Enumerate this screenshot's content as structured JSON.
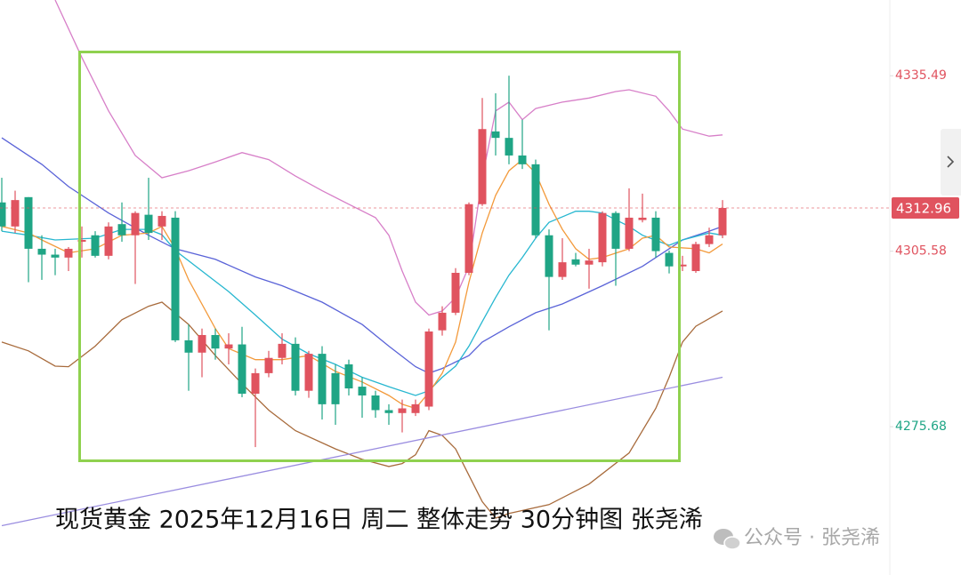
{
  "chart_data": {
    "type": "candlestick",
    "title": "现货黄金 2025年12月16日 周二 整体走势 30分钟图 张尧浠",
    "watermark": "公众号 · 张尧浠",
    "ylim": [
      4250.4,
      4348.4
    ],
    "yticks": [
      4335.49,
      4305.58,
      4275.68
    ],
    "ytick_colors": [
      "#e0535f",
      "#e0535f",
      "#1fa585"
    ],
    "up_color": "#e0535f",
    "down_color": "#1fa585",
    "last_price_color": "#e0535f",
    "open": [
      4313.9,
      4309.8,
      4314.8,
      4306.0,
      4305.0,
      4304.5,
      4307.2,
      4308.3,
      4304.8,
      4310.2,
      4308.3,
      4311.8,
      4309.8,
      4311.3,
      4290.4,
      4288.3,
      4291.3,
      4289.0,
      4289.7,
      4281.3,
      4284.8,
      4287.4,
      4289.8,
      4281.8,
      4288.1,
      4284.8,
      4286.3,
      4282.5,
      4281.0,
      4278.5,
      4278.0,
      4278.0,
      4279.1,
      4292.1,
      4295.1,
      4301.9,
      4313.6,
      4326.0,
      4324.9,
      4321.9,
      4320.4,
      4308.3,
      4301.2,
      4304.2,
      4303.3,
      4303.7,
      4312.1,
      4306.0,
      4310.9,
      4311.3,
      4305.3,
      4303.0,
      4302.2,
      4306.8,
      4308.3
    ],
    "high": [
      4318.1,
      4315.9,
      4314.8,
      4308.3,
      4306.0,
      4306.3,
      4309.8,
      4309.0,
      4310.5,
      4313.9,
      4312.4,
      4318.1,
      4312.4,
      4312.4,
      4293.1,
      4292.4,
      4292.4,
      4291.6,
      4292.7,
      4285.6,
      4288.6,
      4291.6,
      4290.9,
      4288.6,
      4289.4,
      4286.3,
      4287.1,
      4284.1,
      4281.8,
      4279.5,
      4280.3,
      4280.3,
      4292.4,
      4296.2,
      4302.7,
      4313.9,
      4331.7,
      4332.5,
      4335.5,
      4328.0,
      4321.2,
      4309.3,
      4307.8,
      4305.3,
      4306.0,
      4312.4,
      4312.4,
      4316.3,
      4315.4,
      4312.4,
      4305.7,
      4304.8,
      4307.2,
      4309.6,
      4314.3
    ],
    "low": [
      4309.0,
      4308.7,
      4300.3,
      4300.7,
      4301.5,
      4302.2,
      4304.5,
      4304.5,
      4304.2,
      4307.2,
      4300.0,
      4307.5,
      4307.5,
      4290.1,
      4281.8,
      4284.1,
      4287.1,
      4286.3,
      4280.7,
      4272.2,
      4284.1,
      4286.3,
      4281.0,
      4280.6,
      4276.9,
      4276.0,
      4281.0,
      4277.2,
      4277.2,
      4276.0,
      4274.7,
      4277.5,
      4278.5,
      4291.2,
      4294.7,
      4301.5,
      4313.3,
      4321.9,
      4320.4,
      4319.6,
      4307.8,
      4292.1,
      4300.7,
      4303.0,
      4299.2,
      4303.0,
      4299.7,
      4305.6,
      4310.5,
      4304.5,
      4301.8,
      4302.2,
      4301.9,
      4306.3,
      4307.8
    ],
    "close": [
      4309.8,
      4314.3,
      4306.0,
      4305.0,
      4304.5,
      4306.0,
      4307.5,
      4304.8,
      4309.8,
      4308.3,
      4312.1,
      4308.7,
      4311.6,
      4290.4,
      4288.3,
      4291.3,
      4289.0,
      4289.7,
      4281.3,
      4284.8,
      4287.4,
      4289.8,
      4281.8,
      4288.1,
      4279.5,
      4279.5,
      4282.2,
      4281.0,
      4278.5,
      4278.0,
      4278.8,
      4279.5,
      4291.9,
      4295.1,
      4301.9,
      4313.6,
      4326.4,
      4324.9,
      4321.9,
      4320.4,
      4308.3,
      4301.2,
      4303.7,
      4303.3,
      4304.0,
      4312.1,
      4306.0,
      4311.3,
      4311.3,
      4305.6,
      4303.0,
      4303.3,
      4306.8,
      4308.3,
      4312.96
    ],
    "lines": [
      {
        "color": "#d77fc8",
        "x": [
          4,
          6,
          8,
          10,
          12,
          14,
          16,
          18,
          20,
          22,
          24,
          26,
          28,
          29,
          30,
          31,
          32,
          33,
          34,
          35,
          36,
          37,
          38,
          39,
          40,
          42,
          44,
          46,
          47,
          49,
          50,
          51,
          53,
          54
        ],
        "values": [
          4348.4,
          4338.6,
          4329.5,
          4321.9,
          4318.1,
          4319.3,
          4320.8,
          4322.4,
          4321.2,
          4318.4,
          4315.9,
          4313.6,
          4311.3,
          4308.3,
          4302.2,
          4296.9,
          4294.7,
          4295.4,
          4297.7,
          4303.0,
          4318.1,
          4329.5,
          4331.0,
          4328.0,
          4329.9,
          4331.0,
          4331.7,
          4332.8,
          4333.1,
          4332.0,
          4329.5,
          4326.4,
          4325.2,
          4325.4
        ]
      },
      {
        "color": "#a86b3c",
        "x": [
          0,
          2,
          4,
          5,
          7,
          9,
          11,
          12,
          14,
          16,
          18,
          20,
          22,
          25,
          27,
          29,
          30,
          31,
          32,
          33,
          34,
          35,
          36,
          37,
          38,
          41,
          44,
          47,
          49,
          50,
          51,
          52,
          54
        ],
        "values": [
          4290.1,
          4288.6,
          4286.0,
          4285.9,
          4289.4,
          4293.9,
          4296.2,
          4296.9,
          4293.1,
          4287.8,
          4283.0,
          4278.5,
          4275.0,
          4271.9,
          4270.1,
          4268.9,
          4269.4,
          4270.9,
          4275.0,
          4274.2,
          4271.9,
          4267.4,
          4262.9,
          4260.1,
          4260.9,
          4262.4,
          4265.9,
          4271.2,
          4278.8,
          4284.1,
          4290.1,
          4292.8,
          4295.4
        ]
      },
      {
        "color": "#5a63d8",
        "x": [
          0,
          3,
          5,
          8,
          11,
          13,
          16,
          19,
          21,
          24,
          27,
          29,
          31,
          32,
          33,
          35,
          36,
          38,
          40,
          42,
          45,
          48,
          50,
          51,
          53,
          54
        ],
        "values": [
          4324.9,
          4320.4,
          4316.6,
          4312.1,
          4308.3,
          4306.0,
          4304.2,
          4301.2,
          4299.7,
          4296.9,
          4293.1,
          4289.4,
          4285.9,
          4284.8,
          4285.6,
          4287.8,
          4290.1,
          4292.7,
          4295.1,
          4296.6,
          4299.7,
          4303.0,
          4306.0,
          4307.5,
          4309.0,
          4309.8
        ]
      },
      {
        "color": "#27b7d0",
        "x": [
          0,
          2,
          4,
          7,
          9,
          11,
          12,
          13,
          15,
          17,
          19,
          21,
          23,
          25,
          27,
          29,
          31,
          32,
          33,
          34,
          35,
          36,
          37,
          38,
          39,
          40,
          41,
          43,
          44,
          45,
          47,
          48,
          50,
          51,
          53,
          54
        ],
        "values": [
          4309.0,
          4308.3,
          4307.5,
          4307.8,
          4309.3,
          4309.3,
          4308.4,
          4305.7,
          4302.2,
          4298.7,
          4294.7,
          4290.6,
          4288.1,
          4286.3,
          4284.1,
          4282.5,
          4281.0,
          4281.8,
          4284.1,
          4286.0,
          4289.4,
          4293.6,
          4297.7,
          4301.5,
          4304.5,
          4307.8,
          4310.5,
          4312.4,
          4312.4,
          4312.1,
          4309.8,
          4308.3,
          4306.6,
          4307.5,
          4308.7,
          4308.3
        ]
      },
      {
        "color": "#f39a3b",
        "x": [
          0,
          2,
          3,
          5,
          7,
          9,
          11,
          12,
          13,
          14,
          16,
          17,
          19,
          21,
          23,
          25,
          27,
          29,
          30,
          31,
          32,
          33,
          34,
          35,
          36,
          37,
          38,
          39,
          40,
          41,
          42,
          43,
          44,
          45,
          47,
          48,
          49,
          50,
          52,
          53,
          54
        ],
        "values": [
          4309.8,
          4308.7,
          4307.5,
          4305.3,
          4306.0,
          4308.3,
          4308.7,
          4309.8,
          4306.0,
          4300.7,
          4292.4,
          4289.0,
          4287.1,
          4287.1,
          4287.8,
          4285.1,
          4283.3,
          4281.0,
          4279.5,
          4278.8,
          4281.5,
          4284.8,
          4290.1,
          4300.3,
          4308.7,
          4315.1,
          4319.3,
          4321.2,
          4318.9,
          4313.6,
          4309.3,
          4306.0,
          4304.2,
          4304.5,
          4306.0,
          4307.8,
          4308.3,
          4306.3,
          4306.0,
          4305.3,
          4306.8
        ]
      },
      {
        "color": "#9a8de0",
        "x": [
          0,
          54
        ],
        "values": [
          4258.8,
          4284.1
        ]
      }
    ]
  }
}
